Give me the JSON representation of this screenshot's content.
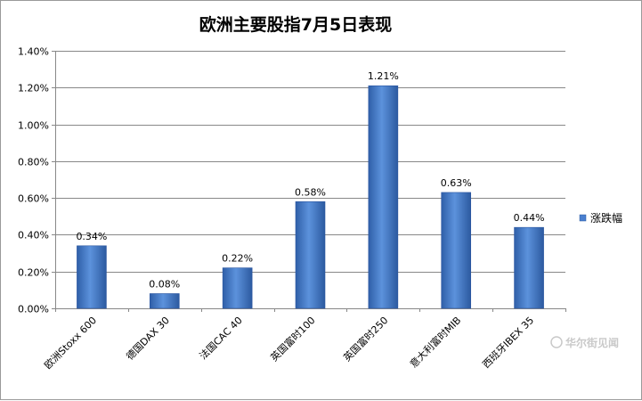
{
  "chart_data": {
    "type": "bar",
    "title": "欧洲主要股指7月5日表现",
    "categories": [
      "欧洲Stoxx 600",
      "德国DAX 30",
      "法国CAC 40",
      "英国富时100",
      "英国富时250",
      "意大利富时MIB",
      "西班牙IBEX 35"
    ],
    "series": [
      {
        "name": "涨跌幅",
        "values": [
          0.34,
          0.08,
          0.22,
          0.58,
          1.21,
          0.63,
          0.44
        ],
        "labels": [
          "0.34%",
          "0.08%",
          "0.22%",
          "0.58%",
          "1.21%",
          "0.63%",
          "0.44%"
        ],
        "color": "#4a7fcf"
      }
    ],
    "ylim": [
      0,
      1.4
    ],
    "yticks": [
      0,
      0.2,
      0.4,
      0.6,
      0.8,
      1.0,
      1.2,
      1.4
    ],
    "ytick_labels": [
      "0.00%",
      "0.20%",
      "0.40%",
      "0.60%",
      "0.80%",
      "1.00%",
      "1.20%",
      "1.40%"
    ],
    "grid": true,
    "legend_position": "right"
  },
  "watermark": {
    "text": "华尔街见闻"
  }
}
